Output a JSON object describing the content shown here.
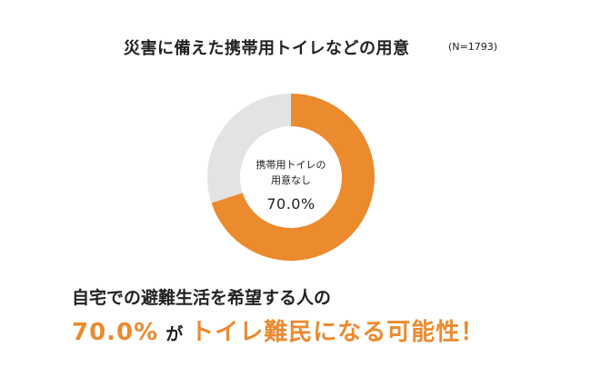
{
  "title": "災害に備えた携帯用トイレなどの用意",
  "sample_size": "(N=1793)",
  "chart_data": {
    "type": "pie",
    "style": "donut",
    "slices": [
      {
        "label": "携帯用トイレの用意なし",
        "value": 70.0,
        "color": "#ec8a2e"
      },
      {
        "value": 30.0,
        "color": "#e3e3e3"
      }
    ],
    "center_label_lines": [
      "携帯用トイレの",
      "用意なし"
    ],
    "center_value": "70.0%"
  },
  "headline": "自宅での避難生活を希望する人の",
  "highlight": {
    "percent": "70.0%",
    "particle": "が",
    "tail": "トイレ難民になる可能性！"
  }
}
